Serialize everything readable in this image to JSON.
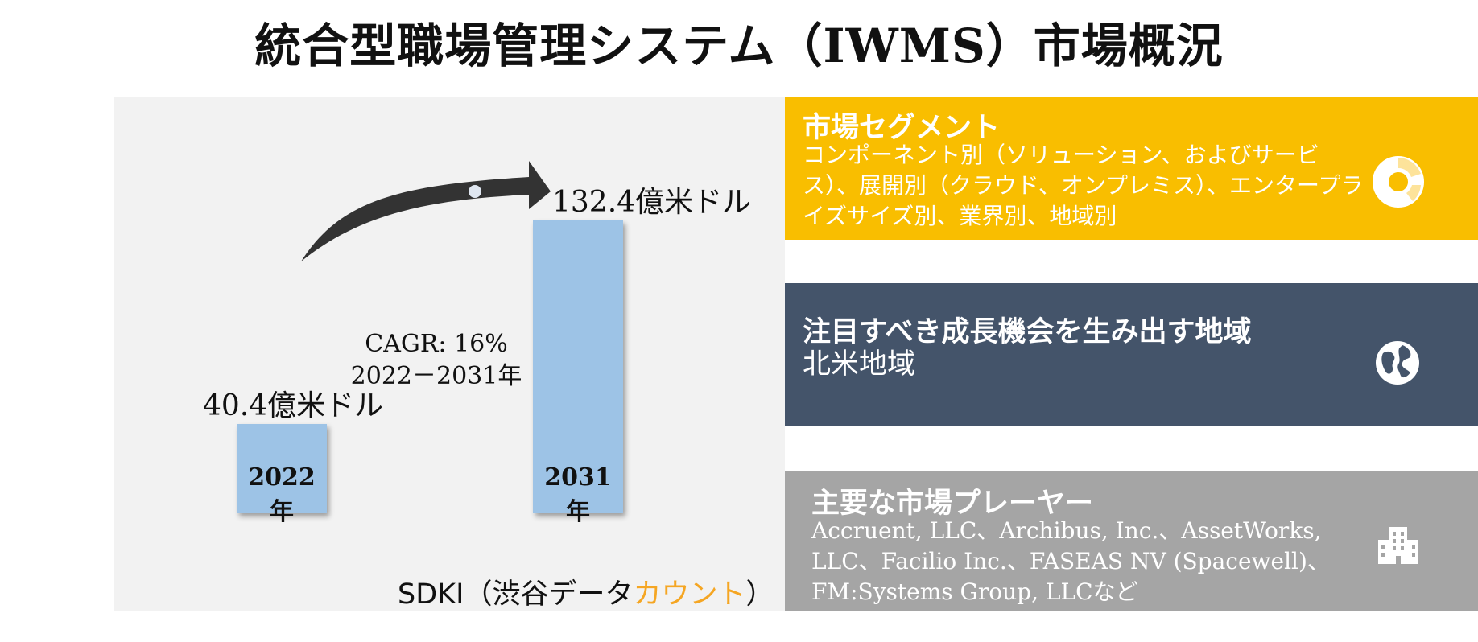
{
  "title": "統合型職場管理システム（IWMS）市場概況",
  "chart_data": {
    "type": "bar",
    "categories": [
      "2022年",
      "2031年"
    ],
    "values": [
      40.4,
      132.4
    ],
    "value_labels": [
      "40.4億米ドル",
      "132.4億米ドル"
    ],
    "annotation": [
      "CAGR: 16%",
      "2022－2031年"
    ],
    "ylim": [
      0,
      132.4
    ],
    "bar_color": "#9dc3e6"
  },
  "source": {
    "prefix": "SDKI（渋谷データ",
    "accent": "カウント",
    "suffix": "）",
    "accent_color": "#f5a623"
  },
  "cards": [
    {
      "heading": "市場セグメント",
      "body": "コンポーネント別（ソリューション、およびサービス）、展開別（クラウド、オンプレミス）、エンタープライズサイズ別、業界別、地域別",
      "color": "#f9be00",
      "icon": "donut-chart-icon"
    },
    {
      "heading": "注目すべき成長機会を生み出す地域",
      "body": "北米地域",
      "color": "#44546a",
      "icon": "globe-icon"
    },
    {
      "heading": "主要な市場プレーヤー",
      "body": "Accruent, LLC、Archibus, Inc.、AssetWorks, LLC、Facilio Inc.、FASEAS NV (Spacewell)、FM:Systems Group, LLCなど",
      "color": "#a5a5a5",
      "icon": "building-icon"
    }
  ]
}
